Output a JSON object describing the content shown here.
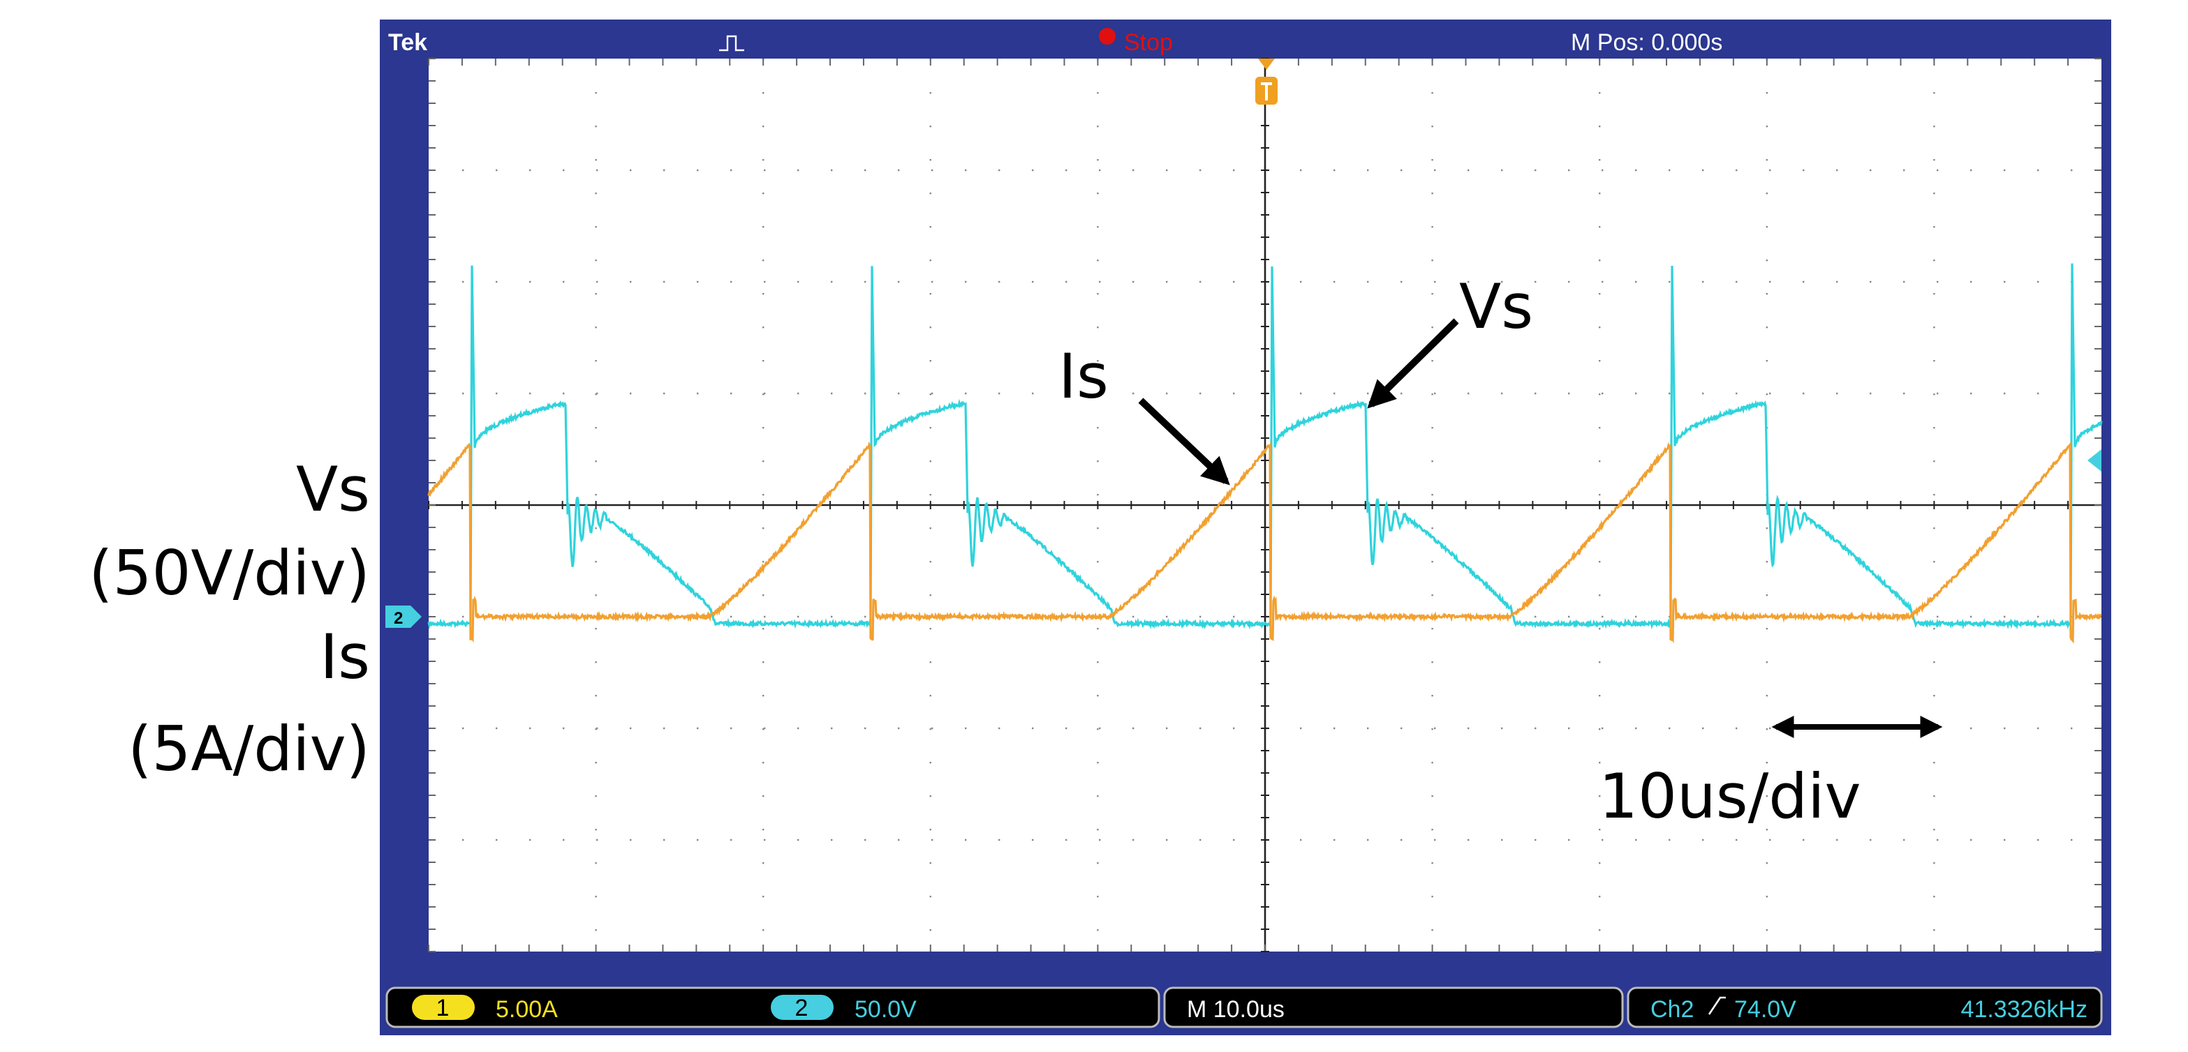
{
  "header": {
    "brand": "Tek",
    "status": "Stop",
    "position": "M Pos: 0.000s"
  },
  "axis_labels": [
    {
      "signal": "Vs",
      "scale": "(50V/div)"
    },
    {
      "signal": "Is",
      "scale": "(5A/div)"
    }
  ],
  "annotations": {
    "current": "Is",
    "voltage": "Vs",
    "timebase": "10us/div"
  },
  "channel_marker": "2",
  "footer": {
    "ch1": {
      "number": "1",
      "scale": "5.00A"
    },
    "ch2": {
      "number": "2",
      "scale": "50.0V"
    },
    "timebase": "M 10.0us",
    "trigger": {
      "source": "Ch2",
      "level": "74.0V"
    },
    "frequency": "41.3326kHz"
  }
}
